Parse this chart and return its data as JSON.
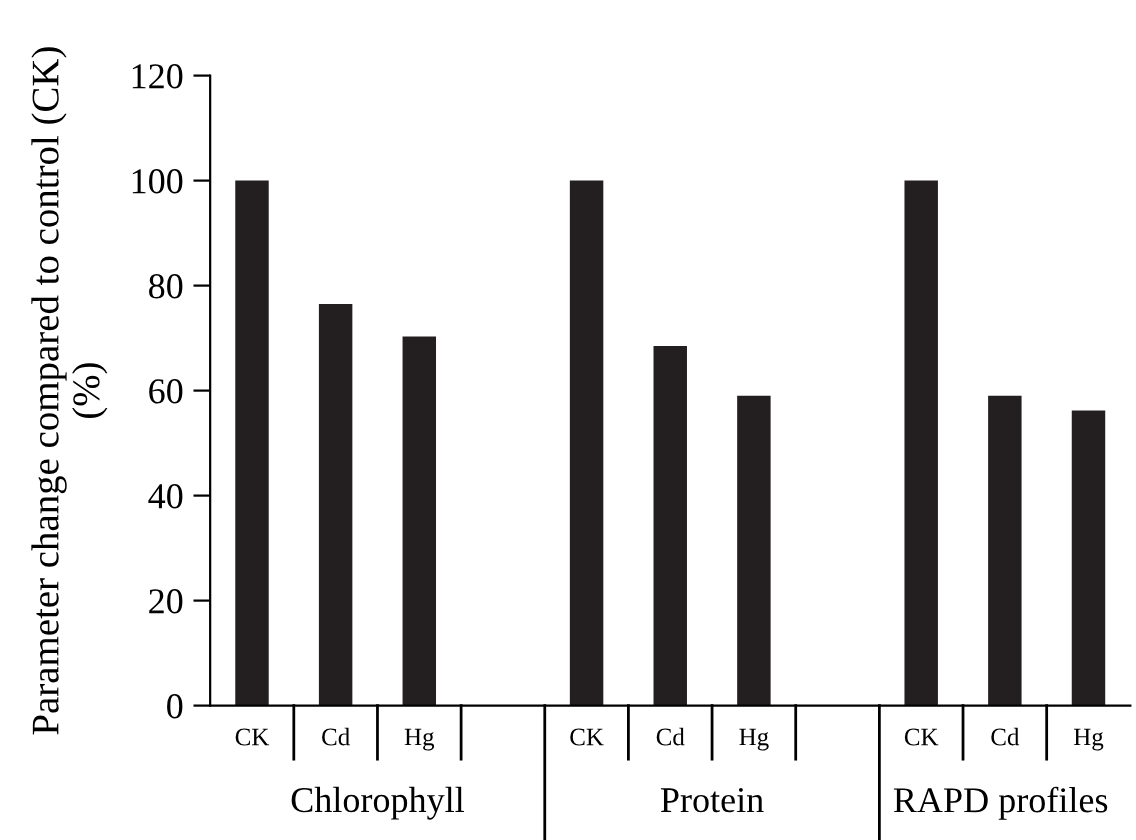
{
  "chart_data": {
    "type": "bar",
    "ylabel": "Parameter change compared to control (CK)\n(%)",
    "categories": [
      "CK",
      "Cd",
      "Hg",
      null,
      "CK",
      "Cd",
      "Hg",
      null,
      "CK",
      "Cd",
      "Hg"
    ],
    "values": [
      100,
      76.5,
      70.3,
      null,
      100,
      68.5,
      59,
      null,
      100,
      59,
      56.2
    ],
    "color": "#231f20",
    "ylim": [
      0,
      120
    ],
    "yticks": [
      0,
      20,
      40,
      60,
      80,
      100,
      120
    ],
    "grid": false,
    "annotations": [
      "Chlorophyll",
      "Protein",
      "RAPD profiles"
    ]
  }
}
